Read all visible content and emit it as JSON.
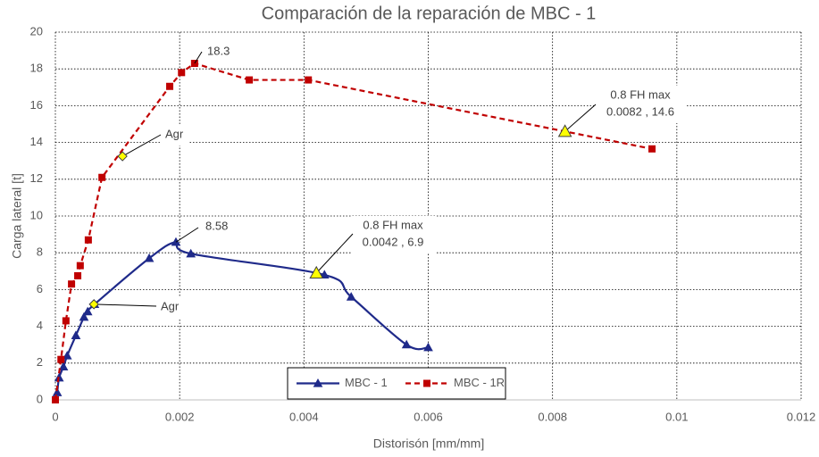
{
  "chart_data": {
    "type": "line",
    "title": "Comparación de la reparación de MBC - 1",
    "x_label": "Distorisón [mm/mm]",
    "y_label": "Carga lateral [t]",
    "xlim": [
      0,
      0.012
    ],
    "xticks": [
      0,
      0.002,
      0.004,
      0.006,
      0.008,
      0.01,
      0.012
    ],
    "ylim": [
      0,
      20
    ],
    "yticks": [
      0,
      2,
      4,
      6,
      8,
      10,
      12,
      14,
      16,
      18,
      20
    ],
    "grid": true,
    "legend": "bottom",
    "series": [
      {
        "name": "MBC - 1",
        "color": "#1f2a8a",
        "marker": "triangle",
        "dash": false,
        "smooth": true,
        "x": [
          3e-05,
          6e-05,
          0.00013,
          0.00019,
          0.00033,
          0.00046,
          0.00052,
          0.00063,
          0.00151,
          0.00194,
          0.00218,
          0.00433,
          0.00476,
          0.00565,
          0.006
        ],
        "values": [
          0.4,
          1.2,
          1.8,
          2.4,
          3.5,
          4.5,
          4.8,
          5.2,
          7.7,
          8.58,
          7.95,
          6.8,
          5.6,
          3.0,
          2.85
        ]
      },
      {
        "name": "MBC - 1R",
        "color": "#c00000",
        "marker": "square",
        "dash": true,
        "smooth": false,
        "x": [
          0,
          9e-05,
          0.00017,
          0.00026,
          0.00036,
          0.0004,
          0.00053,
          0.00075,
          0.00184,
          0.00203,
          0.00224,
          0.00312,
          0.00407,
          0.0096
        ],
        "values": [
          0,
          2.2,
          4.3,
          6.3,
          6.75,
          7.3,
          8.7,
          12.1,
          17.05,
          17.8,
          18.3,
          17.4,
          17.4,
          13.65
        ]
      }
    ],
    "annotations": [
      {
        "text": [
          "18.3"
        ],
        "x": 0.00224,
        "y": 18.3,
        "marker": "none"
      },
      {
        "text": [
          "8.58"
        ],
        "x": 0.00194,
        "y": 8.58,
        "marker": "none"
      },
      {
        "text": [
          "Agr"
        ],
        "x": 0.00108,
        "y": 13.25,
        "marker": "diamond"
      },
      {
        "text": [
          "Agr"
        ],
        "x": 0.00062,
        "y": 5.2,
        "marker": "diamond"
      },
      {
        "text": [
          "0.8 FH max",
          "0.0082 , 14.6"
        ],
        "x": 0.0082,
        "y": 14.6,
        "marker": "triangle"
      },
      {
        "text": [
          "0.8 FH max",
          "0.0042 , 6.9"
        ],
        "x": 0.0042,
        "y": 6.9,
        "marker": "triangle"
      }
    ]
  }
}
